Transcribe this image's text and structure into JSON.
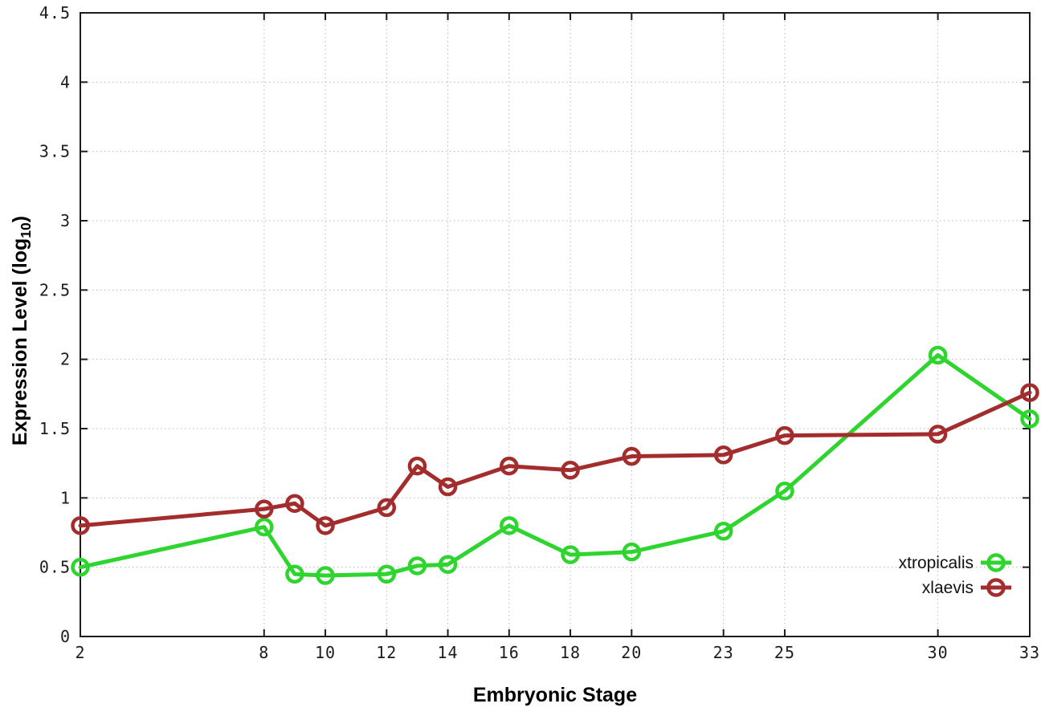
{
  "chart_data": {
    "type": "line",
    "title": "",
    "xlabel": "Embryonic Stage",
    "ylabel": {
      "prefix": "Expression Level (log",
      "subscript": "10",
      "suffix": ")"
    },
    "x": [
      2,
      8,
      9,
      10,
      12,
      13,
      14,
      16,
      18,
      20,
      23,
      25,
      30,
      33
    ],
    "series": [
      {
        "name": "xtropicalis",
        "color": "#2ed52e",
        "values": [
          0.5,
          0.79,
          0.45,
          0.44,
          0.45,
          0.51,
          0.52,
          0.8,
          0.59,
          0.61,
          0.76,
          1.05,
          2.03,
          1.57
        ]
      },
      {
        "name": "xlaevis",
        "color": "#a32c2c",
        "values": [
          0.8,
          0.92,
          0.96,
          0.8,
          0.93,
          1.23,
          1.08,
          1.23,
          1.2,
          1.3,
          1.31,
          1.45,
          1.46,
          1.76
        ]
      }
    ],
    "xlim": [
      2,
      33
    ],
    "ylim": [
      0,
      4.5
    ],
    "x_ticks": [
      2,
      8,
      10,
      12,
      14,
      16,
      18,
      20,
      23,
      25,
      30,
      33
    ],
    "x_tick_labels": [
      "2",
      "8",
      "10",
      "12",
      "14",
      "16",
      "18",
      "20",
      "23",
      "25",
      "30",
      "33"
    ],
    "y_ticks": [
      0,
      0.5,
      1,
      1.5,
      2,
      2.5,
      3,
      3.5,
      4,
      4.5
    ],
    "y_tick_labels": [
      "0",
      "0.5",
      "1",
      "1.5",
      "2",
      "2.5",
      "3",
      "3.5",
      "4",
      "4.5"
    ],
    "grid": true,
    "legend_position": "bottom-right-inside",
    "background": "#ffffff",
    "axis_color": "#1c1c1c",
    "grid_color": "#b8b8b8"
  }
}
